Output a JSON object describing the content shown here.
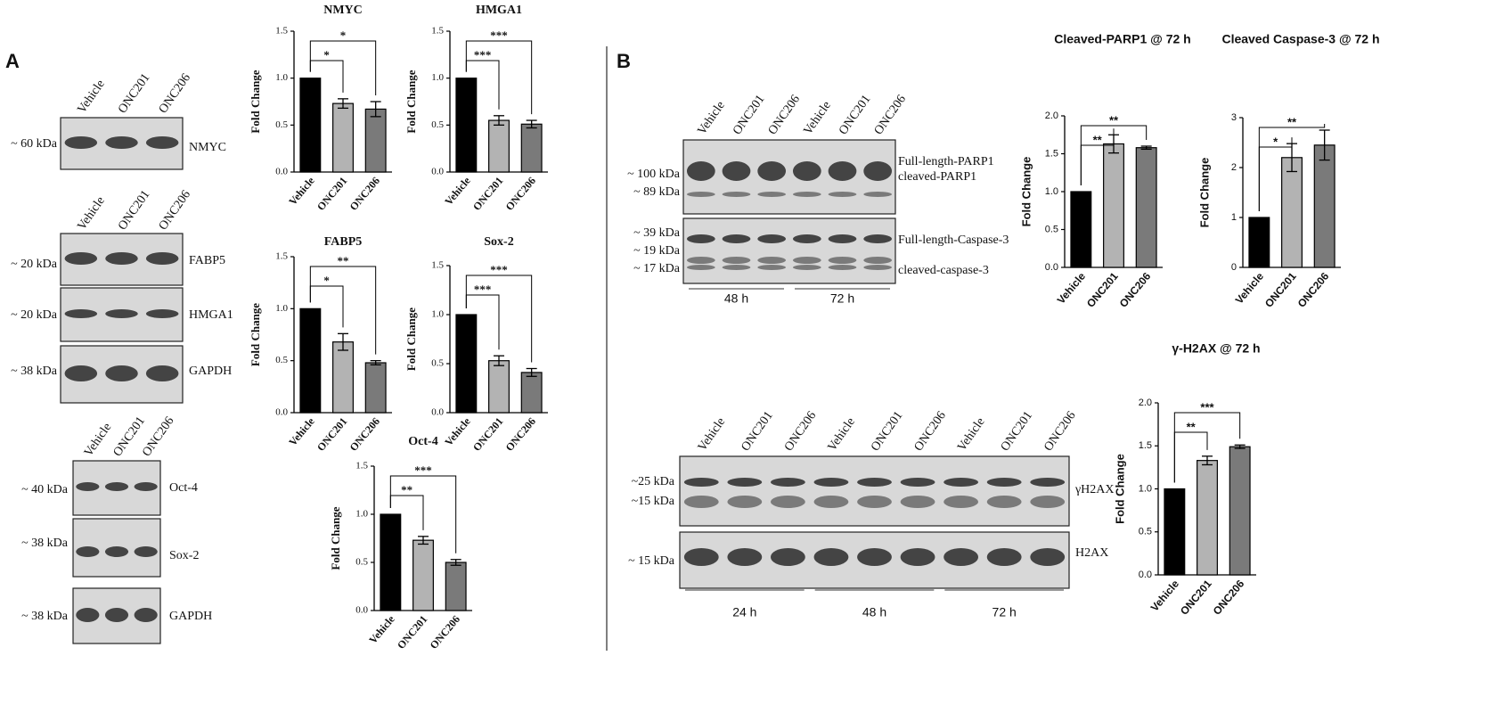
{
  "panel_labels": [
    "A",
    "B"
  ],
  "chart_data": [
    {
      "type": "bar",
      "title": "NMYC",
      "y_label": "Fold Change",
      "categories": [
        "Vehicle",
        "ONC201",
        "ONC206"
      ],
      "values": [
        1.0,
        0.73,
        0.67
      ],
      "errors": [
        null,
        0.05,
        0.08
      ],
      "colors": [
        "#000000",
        "#b3b3b3",
        "#7a7a7a"
      ],
      "significance": [
        "*",
        "*"
      ],
      "ylim": [
        0,
        1.5
      ],
      "yticks": [
        {
          "value": 0,
          "label": "0.0"
        },
        0.5,
        {
          "value": 1,
          "label": "1.0"
        },
        1.5
      ]
    },
    {
      "type": "bar",
      "title": "HMGA1",
      "y_label": "Fold Change",
      "categories": [
        "Vehicle",
        "ONC201",
        "ONC206"
      ],
      "values": [
        1.0,
        0.55,
        0.51
      ],
      "errors": [
        null,
        0.05,
        0.04
      ],
      "colors": [
        "#000000",
        "#b3b3b3",
        "#7a7a7a"
      ],
      "significance": [
        "***",
        "***"
      ],
      "ylim": [
        0,
        1.5
      ],
      "yticks": [
        {
          "value": 0,
          "label": "0.0"
        },
        0.5,
        {
          "value": 1,
          "label": "1.0"
        },
        1.5
      ]
    },
    {
      "type": "bar",
      "title": "FABP5",
      "y_label": "Fold Change",
      "categories": [
        "Vehicle",
        "ONC201",
        "ONC206"
      ],
      "values": [
        1.0,
        0.68,
        0.48
      ],
      "errors": [
        null,
        0.08,
        0.02
      ],
      "colors": [
        "#000000",
        "#b3b3b3",
        "#7a7a7a"
      ],
      "significance": [
        "*",
        "**"
      ],
      "ylim": [
        0,
        1.5
      ],
      "yticks": [
        {
          "value": 0,
          "label": "0.0"
        },
        0.5,
        {
          "value": 1,
          "label": "1.0"
        },
        1.5
      ]
    },
    {
      "type": "bar",
      "title": "Sox-2",
      "y_label": "Fold Change",
      "categories": [
        "Vehicle",
        "ONC201",
        "ONC206"
      ],
      "values": [
        1.0,
        0.53,
        0.41
      ],
      "errors": [
        null,
        0.05,
        0.04
      ],
      "colors": [
        "#000000",
        "#b3b3b3",
        "#7a7a7a"
      ],
      "significance": [
        "***",
        "***"
      ],
      "ylim": [
        0,
        1.5
      ],
      "yticks": [
        {
          "value": 0,
          "label": "0.0"
        },
        0.5,
        {
          "value": 1,
          "label": "1.0"
        },
        1.5
      ]
    },
    {
      "type": "bar",
      "title": "Oct-4",
      "y_label": "Fold Change",
      "categories": [
        "Vehicle",
        "ONC201",
        "ONC206"
      ],
      "values": [
        1.0,
        0.73,
        0.5
      ],
      "errors": [
        null,
        0.04,
        0.03
      ],
      "colors": [
        "#000000",
        "#b3b3b3",
        "#7a7a7a"
      ],
      "significance": [
        "**",
        "***"
      ],
      "ylim": [
        0,
        1.5
      ],
      "yticks": [
        {
          "value": 0,
          "label": "0.0"
        },
        0.5,
        {
          "value": 1,
          "label": "1.0"
        },
        1.5
      ]
    },
    {
      "type": "bar",
      "title": "Cleaved-PARP1 @ 72 h",
      "y_label": "Fold Change",
      "categories": [
        "Vehicle",
        "ONC201",
        "ONC206"
      ],
      "values": [
        1.0,
        1.63,
        1.58
      ],
      "errors": [
        null,
        0.12,
        0.02
      ],
      "colors": [
        "#000000",
        "#b3b3b3",
        "#7a7a7a"
      ],
      "significance": [
        "**",
        "**"
      ],
      "ylim": [
        0,
        2
      ],
      "yticks": [
        {
          "value": 0,
          "label": "0.0"
        },
        0.5,
        {
          "value": 1,
          "label": "1.0"
        },
        1.5,
        {
          "value": 2,
          "label": "2.0"
        }
      ]
    },
    {
      "type": "bar",
      "title": "Cleaved Caspase-3 @ 72 h",
      "y_label": "Fold Change",
      "categories": [
        "Vehicle",
        "ONC201",
        "ONC206"
      ],
      "values": [
        1.0,
        2.2,
        2.45
      ],
      "errors": [
        null,
        0.28,
        0.3
      ],
      "colors": [
        "#000000",
        "#b3b3b3",
        "#7a7a7a"
      ],
      "significance": [
        "*",
        "**"
      ],
      "ylim": [
        0,
        3
      ],
      "yticks": [
        0,
        1,
        2,
        3
      ]
    },
    {
      "type": "bar",
      "title": "γ-H2AX @ 72 h",
      "y_label": "Fold Change",
      "categories": [
        "Vehicle",
        "ONC201",
        "ONC206"
      ],
      "values": [
        1.0,
        1.33,
        1.49
      ],
      "errors": [
        null,
        0.05,
        0.02
      ],
      "colors": [
        "#000000",
        "#b3b3b3",
        "#7a7a7a"
      ],
      "significance": [
        "**",
        "***"
      ],
      "ylim": [
        0,
        2
      ],
      "yticks": [
        {
          "value": 0,
          "label": "0.0"
        },
        0.5,
        {
          "value": 1,
          "label": "1.0"
        },
        1.5,
        {
          "value": 2,
          "label": "2.0"
        }
      ]
    }
  ],
  "blots": [
    {
      "lanes": [
        "Vehicle",
        "ONC201",
        "ONC206"
      ],
      "rows": [
        {
          "markers": [
            "~ 60 kDa"
          ],
          "labels": [
            "NMYC"
          ]
        }
      ]
    },
    {
      "lanes": [
        "Vehicle",
        "ONC201",
        "ONC206"
      ],
      "rows": [
        {
          "markers": [
            "~ 20 kDa"
          ],
          "labels": [
            "FABP5"
          ]
        },
        {
          "markers": [
            "~ 20 kDa"
          ],
          "labels": [
            "HMGA1"
          ]
        },
        {
          "markers": [
            "~ 38 kDa"
          ],
          "labels": [
            "GAPDH"
          ]
        }
      ]
    },
    {
      "lanes": [
        "Vehicle",
        "ONC201",
        "ONC206"
      ],
      "rows": [
        {
          "markers": [
            "~ 40 kDa"
          ],
          "labels": [
            "Oct-4"
          ]
        },
        {
          "markers": [
            "~ 38 kDa"
          ],
          "labels": [
            "Sox-2"
          ]
        },
        {
          "markers": [
            "~ 38 kDa"
          ],
          "labels": [
            "GAPDH"
          ]
        }
      ]
    },
    {
      "lanes": [
        "Vehicle",
        "ONC201",
        "ONC206",
        "Vehicle",
        "ONC201",
        "ONC206"
      ],
      "rows": [
        {
          "markers": [
            "~ 100 kDa",
            "~ 89 kDa"
          ],
          "labels": [
            "Full-length-PARP1",
            "cleaved-PARP1"
          ]
        },
        {
          "markers": [
            "~ 39 kDa",
            "~ 19 kDa",
            "~ 17 kDa"
          ],
          "labels": [
            "Full-length-Caspase-3",
            "cleaved-caspase-3"
          ]
        }
      ],
      "timepoints": [
        "48 h",
        "72 h"
      ]
    },
    {
      "lanes": [
        "Vehicle",
        "ONC201",
        "ONC206",
        "Vehicle",
        "ONC201",
        "ONC206",
        "Vehicle",
        "ONC201",
        "ONC206"
      ],
      "rows": [
        {
          "markers": [
            "~25 kDa",
            "~15 kDa"
          ],
          "labels": [
            "γH2AX"
          ]
        },
        {
          "markers": [
            "~ 15 kDa"
          ],
          "labels": [
            "H2AX"
          ]
        }
      ],
      "timepoints": [
        "24 h",
        "48 h",
        "72 h"
      ]
    }
  ]
}
